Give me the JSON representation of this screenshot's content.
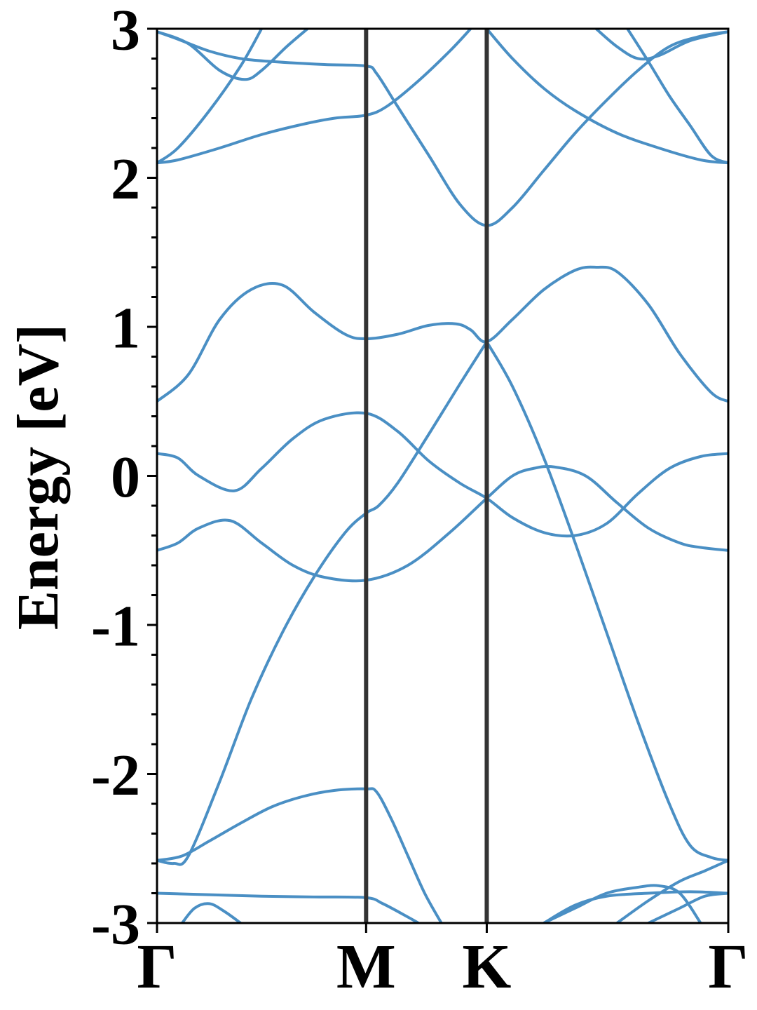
{
  "chart_data": {
    "type": "line",
    "title": "",
    "xlabel": "",
    "ylabel": "Energy [eV]",
    "ylim": [
      -3,
      3
    ],
    "xlim": [
      0,
      2.732
    ],
    "yticks": [
      "-3",
      "-2",
      "-1",
      "0",
      "1",
      "2",
      "3"
    ],
    "kpoints": [
      {
        "label": "Γ",
        "x": 0
      },
      {
        "label": "M",
        "x": 1.0
      },
      {
        "label": "K",
        "x": 1.577
      },
      {
        "label": "Γ",
        "x": 2.732
      }
    ],
    "grid": false,
    "legend": "none",
    "series_color": "#4a8fc4",
    "series": [
      {
        "points": [
          [
            0,
            -2.8
          ],
          [
            0.25,
            -2.81
          ],
          [
            0.5,
            -2.82
          ],
          [
            0.75,
            -2.825
          ],
          [
            1.0,
            -2.83
          ],
          [
            1.08,
            -2.87
          ],
          [
            1.2,
            -2.96
          ],
          [
            1.25,
            -3.0
          ]
        ]
      },
      {
        "points": [
          [
            0,
            -2.58
          ],
          [
            0.12,
            -2.55
          ],
          [
            0.25,
            -2.45
          ],
          [
            0.4,
            -2.33
          ],
          [
            0.55,
            -2.22
          ],
          [
            0.7,
            -2.15
          ],
          [
            0.85,
            -2.11
          ],
          [
            1.0,
            -2.1
          ],
          [
            1.05,
            -2.12
          ],
          [
            1.12,
            -2.3
          ],
          [
            1.2,
            -2.55
          ],
          [
            1.28,
            -2.8
          ],
          [
            1.36,
            -3.0
          ]
        ]
      },
      {
        "points": [
          [
            0,
            -2.58
          ],
          [
            0.08,
            -2.6
          ],
          [
            0.15,
            -2.55
          ],
          [
            0.3,
            -2.05
          ],
          [
            0.45,
            -1.5
          ],
          [
            0.6,
            -1.05
          ],
          [
            0.75,
            -0.68
          ],
          [
            0.9,
            -0.38
          ],
          [
            1.0,
            -0.25
          ],
          [
            1.06,
            -0.2
          ],
          [
            1.15,
            -0.05
          ],
          [
            1.3,
            0.28
          ],
          [
            1.45,
            0.62
          ],
          [
            1.577,
            0.9
          ]
        ]
      },
      {
        "points": [
          [
            1.577,
            0.9
          ],
          [
            1.7,
            0.6
          ],
          [
            1.85,
            0.12
          ],
          [
            2.0,
            -0.45
          ],
          [
            2.15,
            -1.05
          ],
          [
            2.3,
            -1.65
          ],
          [
            2.45,
            -2.2
          ],
          [
            2.55,
            -2.48
          ],
          [
            2.65,
            -2.56
          ],
          [
            2.732,
            -2.58
          ]
        ]
      },
      {
        "points": [
          [
            0,
            -0.5
          ],
          [
            0.1,
            -0.45
          ],
          [
            0.2,
            -0.35
          ],
          [
            0.35,
            -0.3
          ],
          [
            0.5,
            -0.45
          ],
          [
            0.65,
            -0.6
          ],
          [
            0.8,
            -0.68
          ],
          [
            1.0,
            -0.7
          ],
          [
            1.2,
            -0.6
          ],
          [
            1.4,
            -0.38
          ],
          [
            1.577,
            -0.15
          ],
          [
            1.7,
            0.0
          ],
          [
            1.8,
            0.05
          ],
          [
            1.9,
            0.06
          ],
          [
            2.05,
            0.0
          ],
          [
            2.2,
            -0.18
          ],
          [
            2.35,
            -0.35
          ],
          [
            2.5,
            -0.45
          ],
          [
            2.6,
            -0.48
          ],
          [
            2.732,
            -0.5
          ]
        ]
      },
      {
        "points": [
          [
            0,
            0.15
          ],
          [
            0.1,
            0.12
          ],
          [
            0.2,
            0.0
          ],
          [
            0.37,
            -0.1
          ],
          [
            0.5,
            0.05
          ],
          [
            0.65,
            0.25
          ],
          [
            0.8,
            0.38
          ],
          [
            1.0,
            0.42
          ],
          [
            1.15,
            0.3
          ],
          [
            1.3,
            0.1
          ],
          [
            1.45,
            -0.05
          ],
          [
            1.577,
            -0.15
          ],
          [
            1.7,
            -0.28
          ],
          [
            1.85,
            -0.38
          ],
          [
            2.0,
            -0.4
          ],
          [
            2.15,
            -0.32
          ],
          [
            2.3,
            -0.12
          ],
          [
            2.45,
            0.05
          ],
          [
            2.6,
            0.13
          ],
          [
            2.732,
            0.15
          ]
        ]
      },
      {
        "points": [
          [
            0,
            0.5
          ],
          [
            0.15,
            0.68
          ],
          [
            0.3,
            1.05
          ],
          [
            0.45,
            1.25
          ],
          [
            0.6,
            1.28
          ],
          [
            0.75,
            1.1
          ],
          [
            0.9,
            0.95
          ],
          [
            1.0,
            0.92
          ],
          [
            1.15,
            0.95
          ],
          [
            1.3,
            1.01
          ],
          [
            1.43,
            1.02
          ],
          [
            1.5,
            0.98
          ],
          [
            1.577,
            0.9
          ],
          [
            1.7,
            1.05
          ],
          [
            1.85,
            1.25
          ],
          [
            2.0,
            1.38
          ],
          [
            2.1,
            1.4
          ],
          [
            2.2,
            1.37
          ],
          [
            2.35,
            1.15
          ],
          [
            2.5,
            0.82
          ],
          [
            2.65,
            0.56
          ],
          [
            2.732,
            0.5
          ]
        ]
      },
      {
        "points": [
          [
            0,
            2.1
          ],
          [
            0.1,
            2.12
          ],
          [
            0.3,
            2.2
          ],
          [
            0.5,
            2.29
          ],
          [
            0.7,
            2.36
          ],
          [
            0.85,
            2.4
          ],
          [
            1.0,
            2.42
          ],
          [
            1.1,
            2.48
          ],
          [
            1.25,
            2.65
          ],
          [
            1.4,
            2.85
          ],
          [
            1.5,
            3.0
          ]
        ]
      },
      {
        "points": [
          [
            0,
            2.1
          ],
          [
            0.1,
            2.2
          ],
          [
            0.25,
            2.45
          ],
          [
            0.4,
            2.75
          ],
          [
            0.5,
            3.0
          ]
        ]
      },
      {
        "points": [
          [
            0,
            2.98
          ],
          [
            0.1,
            2.93
          ],
          [
            0.25,
            2.85
          ],
          [
            0.4,
            2.8
          ],
          [
            0.55,
            2.78
          ],
          [
            0.8,
            2.76
          ],
          [
            1.0,
            2.75
          ],
          [
            1.05,
            2.7
          ],
          [
            1.15,
            2.48
          ],
          [
            1.3,
            2.15
          ],
          [
            1.45,
            1.82
          ],
          [
            1.577,
            1.68
          ],
          [
            1.7,
            1.8
          ],
          [
            1.85,
            2.05
          ],
          [
            2.0,
            2.3
          ],
          [
            2.15,
            2.52
          ],
          [
            2.3,
            2.72
          ],
          [
            2.45,
            2.88
          ],
          [
            2.6,
            2.95
          ],
          [
            2.732,
            2.98
          ]
        ]
      },
      {
        "points": [
          [
            0,
            2.98
          ],
          [
            0.15,
            2.9
          ],
          [
            0.3,
            2.72
          ],
          [
            0.42,
            2.66
          ],
          [
            0.5,
            2.72
          ],
          [
            0.62,
            2.88
          ],
          [
            0.72,
            3.0
          ]
        ]
      },
      {
        "points": [
          [
            1.577,
            3.0
          ],
          [
            1.7,
            2.8
          ],
          [
            1.85,
            2.6
          ],
          [
            2.0,
            2.45
          ],
          [
            2.2,
            2.3
          ],
          [
            2.4,
            2.2
          ],
          [
            2.6,
            2.12
          ],
          [
            2.732,
            2.1
          ]
        ]
      },
      {
        "points": [
          [
            2.1,
            3.0
          ],
          [
            2.2,
            2.88
          ],
          [
            2.3,
            2.8
          ],
          [
            2.4,
            2.82
          ],
          [
            2.55,
            2.92
          ],
          [
            2.732,
            2.98
          ]
        ]
      },
      {
        "points": [
          [
            2.25,
            3.0
          ],
          [
            2.35,
            2.78
          ],
          [
            2.45,
            2.55
          ],
          [
            2.55,
            2.35
          ],
          [
            2.65,
            2.15
          ],
          [
            2.732,
            2.1
          ]
        ]
      },
      {
        "points": [
          [
            1.85,
            -3.0
          ],
          [
            2.0,
            -2.9
          ],
          [
            2.15,
            -2.8
          ],
          [
            2.3,
            -2.76
          ],
          [
            2.4,
            -2.75
          ],
          [
            2.5,
            -2.8
          ],
          [
            2.6,
            -3.0
          ]
        ]
      },
      {
        "points": [
          [
            1.85,
            -3.0
          ],
          [
            2.0,
            -2.88
          ],
          [
            2.15,
            -2.82
          ],
          [
            2.35,
            -2.8
          ],
          [
            2.55,
            -2.79
          ],
          [
            2.732,
            -2.8
          ]
        ]
      },
      {
        "points": [
          [
            2.2,
            -3.0
          ],
          [
            2.35,
            -2.85
          ],
          [
            2.5,
            -2.72
          ],
          [
            2.62,
            -2.65
          ],
          [
            2.732,
            -2.58
          ]
        ]
      },
      {
        "points": [
          [
            2.35,
            -3.0
          ],
          [
            2.5,
            -2.9
          ],
          [
            2.62,
            -2.82
          ],
          [
            2.732,
            -2.8
          ]
        ]
      },
      {
        "points": [
          [
            0.12,
            -3.0
          ],
          [
            0.18,
            -2.9
          ],
          [
            0.25,
            -2.87
          ],
          [
            0.32,
            -2.92
          ],
          [
            0.4,
            -3.0
          ]
        ]
      }
    ]
  }
}
